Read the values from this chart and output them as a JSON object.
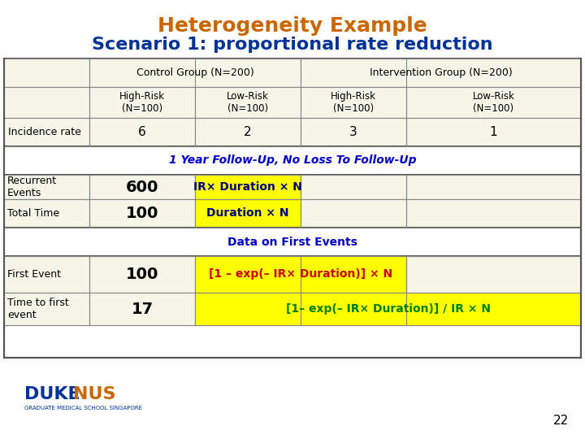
{
  "title_line1": "Heterogeneity Example",
  "title_line2": "Scenario 1: proportional rate reduction",
  "title_line1_color": "#CC6600",
  "title_line2_color": "#003399",
  "bg_color": "#FFFFFF",
  "table_bg": "#F5F5E8",
  "header_bg": "#F5F5E8",
  "yellow_bg": "#FFFF00",
  "followup_color": "#0000CC",
  "data_on_first_color": "#0000CC",
  "bold_number_color": "#000000",
  "formula_recurrent_color": "#000080",
  "formula_total_color": "#000080",
  "formula_first_event_color": "#CC0000",
  "formula_time_color": "#008000",
  "page_num_color": "#000000",
  "rows": [
    {
      "label": "",
      "col1_header": "Control Group (N=200)",
      "col2_header": "Intervention Group (N=200)",
      "is_main_header": true
    }
  ],
  "subheader": [
    "",
    "High-Risk\n(N=100)",
    "Low-Risk\n(N=100)",
    "High-Risk\n(N=100)",
    "Low-Risk\n(N=100)"
  ],
  "incidence_row": [
    "Incidence rate",
    "6",
    "2",
    "3",
    "1"
  ],
  "followup_text": "1 Year Follow-Up, No Loss To Follow-Up",
  "recurrent_label": "Recurrent\nEvents",
  "recurrent_value": "600",
  "recurrent_formula": "IR× Duration × N",
  "total_time_label": "Total Time",
  "total_time_value": "100",
  "total_time_formula": "Duration × N",
  "data_first_text": "Data on First Events",
  "first_event_label": "First Event",
  "first_event_value": "100",
  "first_event_formula": "[1 – exp(– IR× Duration)] × N",
  "time_first_label": "Time to first\nevent",
  "time_first_value": "17",
  "time_first_formula": "[1– exp(– IR× Duration)] / IR × N",
  "page_number": "22"
}
